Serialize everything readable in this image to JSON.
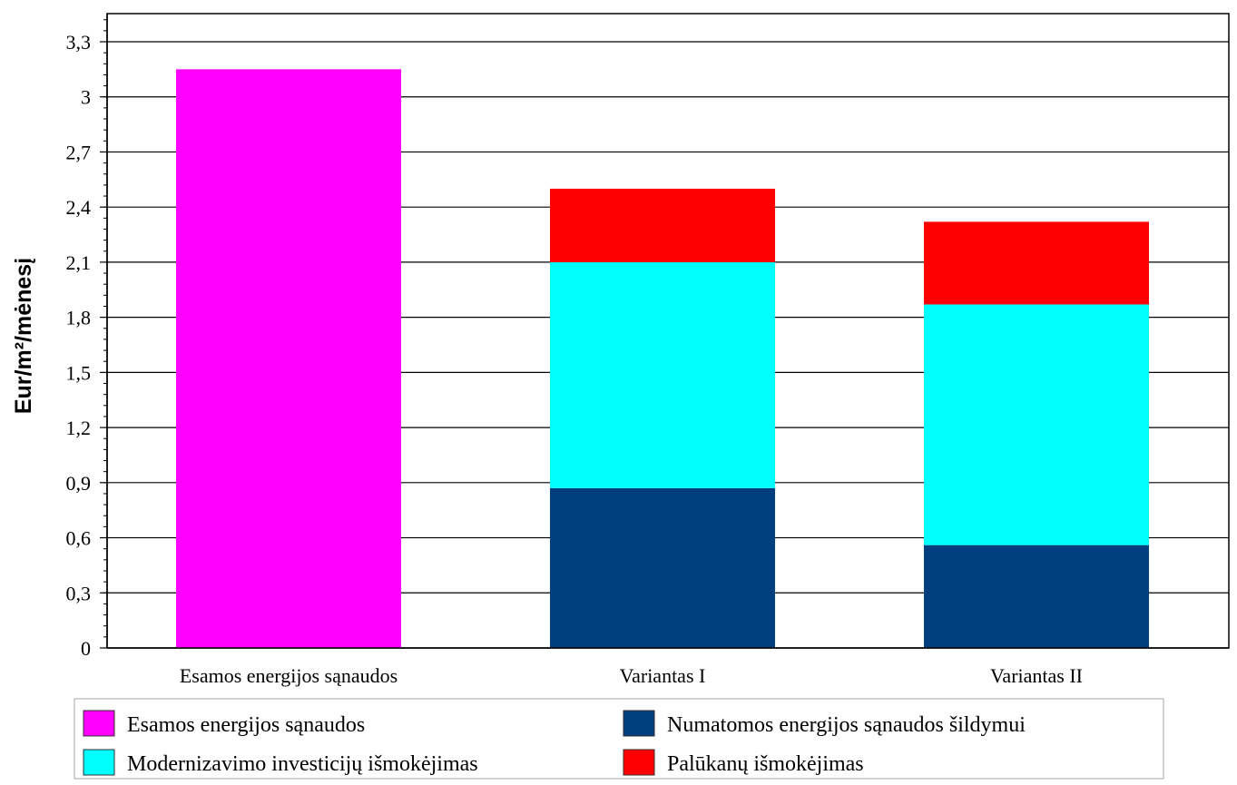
{
  "chart_data": {
    "type": "bar",
    "stacked": true,
    "title": "",
    "xlabel": "",
    "ylabel": "Eur/m²/mėnesį",
    "ylim": [
      0,
      3.3
    ],
    "yticks": [
      0,
      0.3,
      0.6,
      0.9,
      1.2,
      1.5,
      1.8,
      2.1,
      2.4,
      2.7,
      3,
      3.3
    ],
    "ytick_labels": [
      "0",
      "0,3",
      "0,6",
      "0,9",
      "1,2",
      "1,5",
      "1,8",
      "2,1",
      "2,4",
      "2,7",
      "3",
      "3,3"
    ],
    "grid": true,
    "legend_position": "bottom",
    "categories": [
      "Esamos energijos sąnaudos",
      "Variantas I",
      "Variantas II"
    ],
    "series": [
      {
        "name": "Esamos energijos sąnaudos",
        "color": "#ff00ff",
        "values": [
          3.15,
          0,
          0
        ]
      },
      {
        "name": "Numatomos energijos sąnaudos šildymui",
        "color": "#003f7f",
        "values": [
          0,
          0.87,
          0.56
        ]
      },
      {
        "name": "Modernizavimo investicijų išmokėjimas",
        "color": "#00ffff",
        "values": [
          0,
          1.23,
          1.31
        ]
      },
      {
        "name": "Palūkanų išmokėjimas",
        "color": "#ff0000",
        "values": [
          0,
          0.4,
          0.45
        ]
      }
    ],
    "legend_order": [
      0,
      1,
      2,
      3
    ]
  }
}
